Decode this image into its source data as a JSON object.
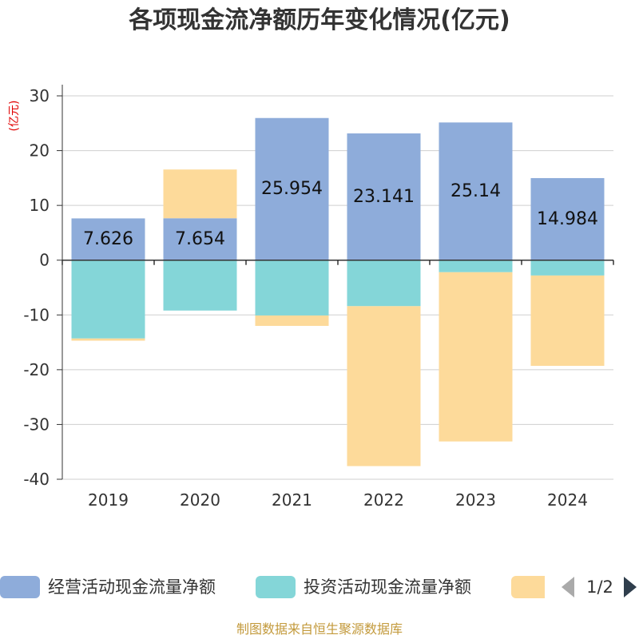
{
  "source": "制图数据来自恒生聚源数据库",
  "legend": {
    "page": "1/2"
  },
  "chart_data": {
    "type": "bar",
    "stacked": true,
    "title": "各项现金流净额历年变化情况(亿元)",
    "xlabel": "",
    "ylabel": "(亿元)",
    "categories": [
      "2019",
      "2020",
      "2021",
      "2022",
      "2023",
      "2024"
    ],
    "ylim": [
      -40,
      30
    ],
    "yticks": [
      30,
      20,
      10,
      0,
      -10,
      -20,
      -30,
      -40
    ],
    "grid": true,
    "legend_position": "bottom",
    "series": [
      {
        "name": "经营活动现金流量净额",
        "color": "#8eacda",
        "values": [
          7.626,
          7.654,
          25.954,
          23.141,
          25.14,
          14.984
        ],
        "show_labels": true
      },
      {
        "name": "投资活动现金流量净额",
        "color": "#84d6d8",
        "values": [
          -14.3,
          -9.2,
          -10.1,
          -8.4,
          -2.2,
          -2.8
        ]
      },
      {
        "name": "",
        "color": "#fdda9a",
        "values": [
          -0.4,
          8.9,
          -1.9,
          -29.2,
          -30.9,
          -16.5
        ]
      }
    ]
  }
}
